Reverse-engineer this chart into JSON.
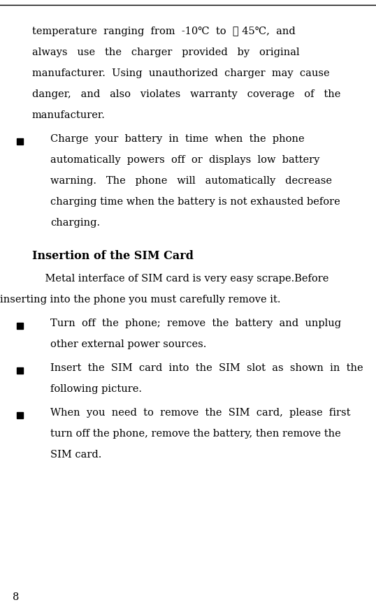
{
  "page_number": "8",
  "bg_color": "#ffffff",
  "text_color": "#000000",
  "font_size_body": 10.5,
  "font_size_heading": 11.5,
  "intro_lines": [
    "temperature  ranging  from  -10℃  to  ＋ 45℃,  and",
    "always   use   the   charger   provided   by   original",
    "manufacturer.  Using  unauthorized  charger  may  cause",
    "danger,   and   also   violates   warranty   coverage   of   the",
    "manufacturer."
  ],
  "bullet1_lines": [
    "Charge  your  battery  in  time  when  the  phone",
    "automatically  powers  off  or  displays  low  battery",
    "warning.   The   phone   will   automatically   decrease",
    "charging time when the battery is not exhausted before",
    "charging."
  ],
  "section_heading": "Insertion of the SIM Card",
  "section_intro_line1": "    Metal interface of SIM card is very easy scrape.Before",
  "section_intro_line2": "inserting into the phone you must carefully remove it.",
  "bullet2_lines": [
    "Turn  off  the  phone;  remove  the  battery  and  unplug",
    "other external power sources."
  ],
  "bullet3_lines": [
    "Insert  the  SIM  card  into  the  SIM  slot  as  shown  in  the",
    "following picture."
  ],
  "bullet4_lines": [
    "When  you  need  to  remove  the  SIM  card,  please  first",
    "turn off the phone, remove the battery, then remove the",
    "SIM card."
  ]
}
